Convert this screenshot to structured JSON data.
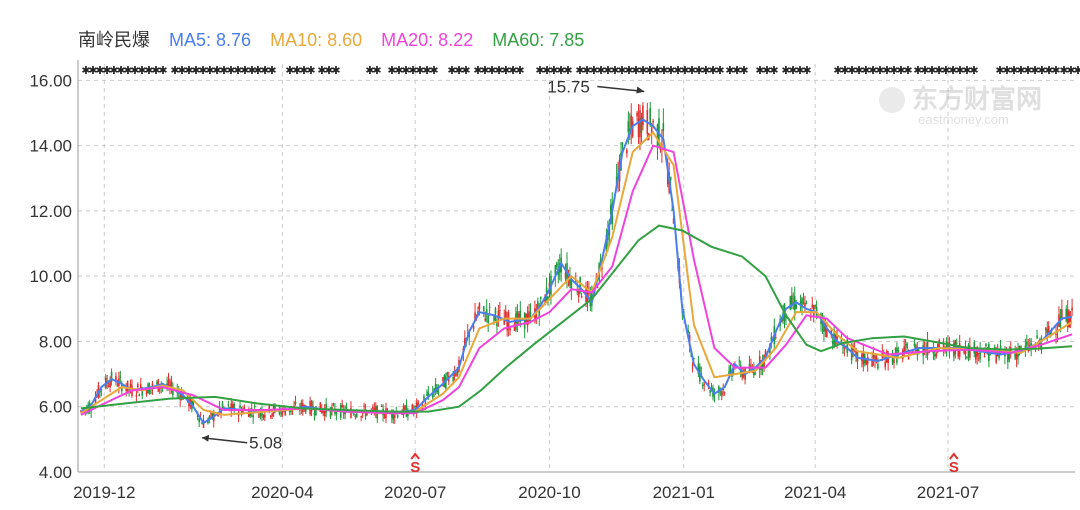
{
  "chart_data": {
    "type": "line",
    "title": "南岭民爆",
    "legend": {
      "stock_name": "南岭民爆",
      "items": [
        {
          "label": "MA5: 8.76",
          "color": "#4a7dee"
        },
        {
          "label": "MA10: 8.60",
          "color": "#e8a83a"
        },
        {
          "label": "MA20: 8.22",
          "color": "#ee44dd"
        },
        {
          "label": "MA60: 7.85",
          "color": "#33a043"
        }
      ]
    },
    "y_axis": {
      "ticks": [
        "16.00",
        "14.00",
        "12.00",
        "10.00",
        "8.00",
        "6.00",
        "4.00"
      ],
      "ylim": [
        4,
        16.5
      ],
      "grid": true
    },
    "x_axis": {
      "ticks": [
        "2019-12",
        "2020-04",
        "2020-07",
        "2020-10",
        "2021-01",
        "2021-04",
        "2021-07"
      ],
      "grid": true
    },
    "annotations": {
      "high_label": "15.75",
      "high_date": "2020-12-07",
      "low_label": "5.08",
      "low_date": "2020-02-04"
    },
    "markers": [
      {
        "date": "2020-07-01",
        "label": "S"
      },
      {
        "date": "2021-07-05",
        "label": "S"
      }
    ],
    "watermark": {
      "text_cn": "东方财富网",
      "text_en": "eastmoney.com"
    },
    "colors": {
      "up": "#e03030",
      "down": "#1a9a3a",
      "grid": "#cccccc",
      "arrow": "#e03030"
    },
    "series": [
      {
        "name": "MA5",
        "color": "#4a7dee",
        "points": [
          [
            "2019-11-15",
            5.85
          ],
          [
            "2019-11-22",
            6.05
          ],
          [
            "2019-11-29",
            6.6
          ],
          [
            "2019-12-06",
            6.85
          ],
          [
            "2019-12-13",
            6.7
          ],
          [
            "2019-12-20",
            6.5
          ],
          [
            "2019-12-27",
            6.55
          ],
          [
            "2020-01-03",
            6.6
          ],
          [
            "2020-01-10",
            6.7
          ],
          [
            "2020-01-17",
            6.55
          ],
          [
            "2020-01-24",
            6.35
          ],
          [
            "2020-01-31",
            6.0
          ],
          [
            "2020-02-07",
            5.5
          ],
          [
            "2020-02-14",
            5.7
          ],
          [
            "2020-02-21",
            5.95
          ],
          [
            "2020-03-06",
            5.9
          ],
          [
            "2020-03-20",
            5.85
          ],
          [
            "2020-04-03",
            5.9
          ],
          [
            "2020-04-17",
            6.0
          ],
          [
            "2020-05-01",
            5.9
          ],
          [
            "2020-05-15",
            5.85
          ],
          [
            "2020-06-01",
            5.85
          ],
          [
            "2020-06-15",
            5.8
          ],
          [
            "2020-07-01",
            5.9
          ],
          [
            "2020-07-10",
            6.3
          ],
          [
            "2020-07-20",
            6.7
          ],
          [
            "2020-07-31",
            7.2
          ],
          [
            "2020-08-07",
            8.3
          ],
          [
            "2020-08-14",
            8.9
          ],
          [
            "2020-08-24",
            8.8
          ],
          [
            "2020-09-04",
            8.6
          ],
          [
            "2020-09-18",
            8.7
          ],
          [
            "2020-09-25",
            9.1
          ],
          [
            "2020-10-01",
            9.6
          ],
          [
            "2020-10-09",
            10.4
          ],
          [
            "2020-10-16",
            9.9
          ],
          [
            "2020-10-23",
            9.6
          ],
          [
            "2020-10-30",
            9.2
          ],
          [
            "2020-11-06",
            10.5
          ],
          [
            "2020-11-13",
            12.0
          ],
          [
            "2020-11-20",
            13.8
          ],
          [
            "2020-11-27",
            14.6
          ],
          [
            "2020-12-04",
            14.8
          ],
          [
            "2020-12-11",
            14.6
          ],
          [
            "2020-12-18",
            14.2
          ],
          [
            "2020-12-25",
            12.0
          ],
          [
            "2020-12-31",
            9.0
          ],
          [
            "2021-01-08",
            7.3
          ],
          [
            "2021-01-15",
            6.8
          ],
          [
            "2021-01-22",
            6.4
          ],
          [
            "2021-01-29",
            6.6
          ],
          [
            "2021-02-05",
            7.3
          ],
          [
            "2021-02-12",
            7.0
          ],
          [
            "2021-02-19",
            7.2
          ],
          [
            "2021-02-26",
            7.5
          ],
          [
            "2021-03-05",
            8.3
          ],
          [
            "2021-03-12",
            9.0
          ],
          [
            "2021-03-19",
            9.2
          ],
          [
            "2021-03-26",
            9.0
          ],
          [
            "2021-04-02",
            8.9
          ],
          [
            "2021-04-09",
            8.4
          ],
          [
            "2021-04-16",
            8.0
          ],
          [
            "2021-04-23",
            7.8
          ],
          [
            "2021-04-30",
            7.5
          ],
          [
            "2021-05-14",
            7.4
          ],
          [
            "2021-05-28",
            7.6
          ],
          [
            "2021-06-11",
            7.8
          ],
          [
            "2021-06-25",
            7.8
          ],
          [
            "2021-07-09",
            7.8
          ],
          [
            "2021-07-23",
            7.7
          ],
          [
            "2021-08-06",
            7.6
          ],
          [
            "2021-08-20",
            7.7
          ],
          [
            "2021-09-03",
            8.0
          ],
          [
            "2021-09-17",
            8.7
          ],
          [
            "2021-09-24",
            8.76
          ]
        ]
      },
      {
        "name": "MA10",
        "color": "#e8a83a",
        "points": [
          [
            "2019-11-15",
            5.8
          ],
          [
            "2019-11-29",
            6.2
          ],
          [
            "2019-12-13",
            6.6
          ],
          [
            "2019-12-27",
            6.5
          ],
          [
            "2020-01-10",
            6.65
          ],
          [
            "2020-01-24",
            6.5
          ],
          [
            "2020-02-07",
            5.9
          ],
          [
            "2020-02-21",
            5.75
          ],
          [
            "2020-03-20",
            5.85
          ],
          [
            "2020-04-17",
            5.95
          ],
          [
            "2020-05-15",
            5.85
          ],
          [
            "2020-06-15",
            5.8
          ],
          [
            "2020-07-01",
            5.85
          ],
          [
            "2020-07-20",
            6.4
          ],
          [
            "2020-07-31",
            6.9
          ],
          [
            "2020-08-14",
            8.4
          ],
          [
            "2020-08-31",
            8.7
          ],
          [
            "2020-09-18",
            8.7
          ],
          [
            "2020-10-01",
            9.3
          ],
          [
            "2020-10-16",
            10.0
          ],
          [
            "2020-10-30",
            9.5
          ],
          [
            "2020-11-13",
            11.2
          ],
          [
            "2020-11-27",
            13.8
          ],
          [
            "2020-12-11",
            14.4
          ],
          [
            "2020-12-25",
            13.4
          ],
          [
            "2021-01-08",
            8.5
          ],
          [
            "2021-01-22",
            6.9
          ],
          [
            "2021-02-05",
            7.0
          ],
          [
            "2021-02-19",
            7.1
          ],
          [
            "2021-03-05",
            7.8
          ],
          [
            "2021-03-19",
            8.9
          ],
          [
            "2021-04-02",
            8.9
          ],
          [
            "2021-04-16",
            8.2
          ],
          [
            "2021-04-30",
            7.7
          ],
          [
            "2021-05-28",
            7.5
          ],
          [
            "2021-06-25",
            7.8
          ],
          [
            "2021-07-23",
            7.75
          ],
          [
            "2021-08-20",
            7.65
          ],
          [
            "2021-09-10",
            8.2
          ],
          [
            "2021-09-24",
            8.6
          ]
        ]
      },
      {
        "name": "MA20",
        "color": "#ee44dd",
        "points": [
          [
            "2019-11-15",
            5.75
          ],
          [
            "2019-12-01",
            6.1
          ],
          [
            "2019-12-20",
            6.5
          ],
          [
            "2020-01-10",
            6.6
          ],
          [
            "2020-01-31",
            6.35
          ],
          [
            "2020-02-21",
            5.9
          ],
          [
            "2020-03-20",
            5.9
          ],
          [
            "2020-04-17",
            5.95
          ],
          [
            "2020-05-15",
            5.85
          ],
          [
            "2020-06-15",
            5.8
          ],
          [
            "2020-07-01",
            5.8
          ],
          [
            "2020-07-20",
            6.2
          ],
          [
            "2020-07-31",
            6.6
          ],
          [
            "2020-08-14",
            7.8
          ],
          [
            "2020-08-31",
            8.4
          ],
          [
            "2020-09-18",
            8.6
          ],
          [
            "2020-10-01",
            8.9
          ],
          [
            "2020-10-16",
            9.6
          ],
          [
            "2020-10-30",
            9.5
          ],
          [
            "2020-11-13",
            10.3
          ],
          [
            "2020-11-27",
            12.6
          ],
          [
            "2020-12-11",
            14.0
          ],
          [
            "2020-12-25",
            13.8
          ],
          [
            "2021-01-08",
            10.5
          ],
          [
            "2021-01-22",
            7.8
          ],
          [
            "2021-02-05",
            7.2
          ],
          [
            "2021-02-26",
            7.2
          ],
          [
            "2021-03-12",
            7.9
          ],
          [
            "2021-03-26",
            8.8
          ],
          [
            "2021-04-09",
            8.7
          ],
          [
            "2021-04-23",
            8.1
          ],
          [
            "2021-05-21",
            7.6
          ],
          [
            "2021-06-18",
            7.7
          ],
          [
            "2021-07-16",
            7.75
          ],
          [
            "2021-08-13",
            7.65
          ],
          [
            "2021-09-03",
            7.9
          ],
          [
            "2021-09-24",
            8.22
          ]
        ]
      },
      {
        "name": "MA60",
        "color": "#33a043",
        "points": [
          [
            "2019-11-15",
            5.95
          ],
          [
            "2019-12-15",
            6.1
          ],
          [
            "2020-01-15",
            6.25
          ],
          [
            "2020-02-15",
            6.3
          ],
          [
            "2020-03-15",
            6.1
          ],
          [
            "2020-04-15",
            5.95
          ],
          [
            "2020-05-15",
            5.9
          ],
          [
            "2020-06-15",
            5.85
          ],
          [
            "2020-07-10",
            5.85
          ],
          [
            "2020-07-31",
            6.0
          ],
          [
            "2020-08-15",
            6.5
          ],
          [
            "2020-09-01",
            7.2
          ],
          [
            "2020-09-20",
            7.9
          ],
          [
            "2020-10-10",
            8.6
          ],
          [
            "2020-10-30",
            9.3
          ],
          [
            "2020-11-15",
            10.2
          ],
          [
            "2020-12-01",
            11.1
          ],
          [
            "2020-12-15",
            11.55
          ],
          [
            "2020-12-31",
            11.4
          ],
          [
            "2021-01-20",
            10.9
          ],
          [
            "2021-02-10",
            10.6
          ],
          [
            "2021-02-26",
            10.0
          ],
          [
            "2021-03-12",
            8.8
          ],
          [
            "2021-03-26",
            7.9
          ],
          [
            "2021-04-05",
            7.7
          ],
          [
            "2021-04-20",
            7.95
          ],
          [
            "2021-05-10",
            8.1
          ],
          [
            "2021-06-01",
            8.15
          ],
          [
            "2021-06-20",
            8.0
          ],
          [
            "2021-07-15",
            7.8
          ],
          [
            "2021-08-10",
            7.75
          ],
          [
            "2021-09-01",
            7.78
          ],
          [
            "2021-09-24",
            7.85
          ]
        ]
      }
    ],
    "candles_summary": "daily candles closely follow MA5"
  }
}
